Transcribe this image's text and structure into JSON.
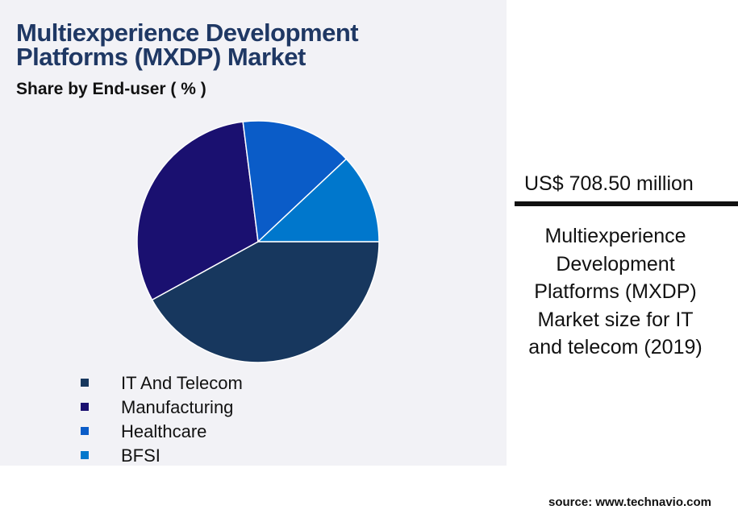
{
  "chart_data": {
    "type": "pie",
    "title": "Multiexperience Development Platforms (MXDP) Market",
    "subtitle": "Share by End-user ( % )",
    "categories": [
      "IT And Telecom",
      "Manufacturing",
      "Healthcare",
      "BFSI"
    ],
    "values": [
      42,
      31,
      15,
      12
    ],
    "colors": [
      "#17375e",
      "#1a1070",
      "#0a5cc8",
      "#0077cc"
    ]
  },
  "highlight": {
    "value": "US$ 708.50 million",
    "description": "Multiexperience Development Platforms (MXDP) Market size for IT and telecom (2019)"
  },
  "source": "source: www.technavio.com"
}
